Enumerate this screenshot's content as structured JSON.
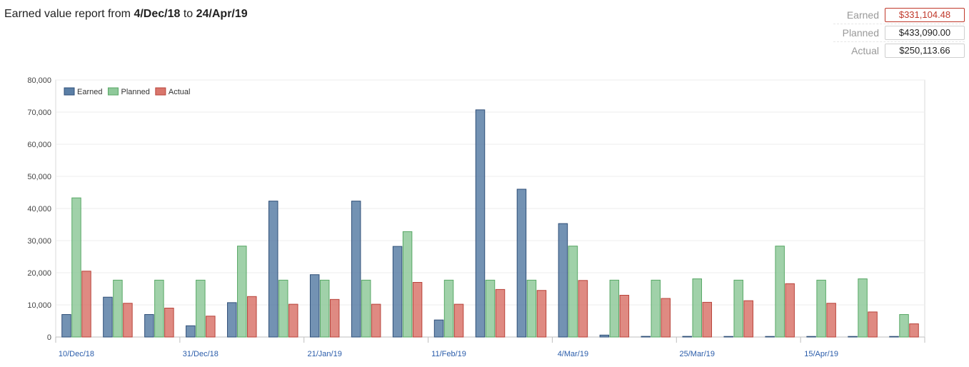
{
  "header": {
    "prefix": "Earned value report from",
    "start_date": "4/Dec/18",
    "connector": "to",
    "end_date": "24/Apr/19"
  },
  "summary": {
    "earned_label": "Earned",
    "earned_value": "$331,104.48",
    "planned_label": "Planned",
    "planned_value": "$433,090.00",
    "actual_label": "Actual",
    "actual_value": "$250,113.66"
  },
  "colors": {
    "earned": "#5b7fa6",
    "earned_border": "#2f4f78",
    "planned": "#8fc99a",
    "planned_border": "#58a866",
    "actual": "#d9766c",
    "actual_border": "#b8433a",
    "x_tick_label": "#2a5caa"
  },
  "chart_data": {
    "type": "bar",
    "title": "",
    "xlabel": "",
    "ylabel": "",
    "ylim": [
      0,
      80000
    ],
    "y_ticks": [
      "0",
      "10,000",
      "20,000",
      "30,000",
      "40,000",
      "50,000",
      "60,000",
      "70,000",
      "80,000"
    ],
    "grid": true,
    "legend": "top-left",
    "x_tick_labels": [
      "10/Dec/18",
      "31/Dec/18",
      "21/Jan/19",
      "11/Feb/19",
      "4/Mar/19",
      "25/Mar/19",
      "15/Apr/19"
    ],
    "x_tick_label_positions": [
      0.5,
      3.5,
      6.5,
      9.5,
      12.5,
      15.5,
      18.5
    ],
    "num_groups": 21,
    "series": [
      {
        "name": "Earned",
        "values": [
          7000,
          12400,
          7000,
          3500,
          10700,
          42300,
          19400,
          42300,
          28200,
          5300,
          70700,
          46000,
          35300,
          600,
          200,
          200,
          100,
          100,
          100,
          100,
          100
        ]
      },
      {
        "name": "Planned",
        "values": [
          43300,
          17700,
          17700,
          17700,
          28300,
          17700,
          17700,
          17700,
          32800,
          17700,
          17700,
          17700,
          28300,
          17700,
          17700,
          18100,
          17700,
          28300,
          17700,
          18100,
          7000
        ]
      },
      {
        "name": "Actual",
        "values": [
          20500,
          10500,
          9000,
          6500,
          12600,
          10200,
          11700,
          10200,
          17000,
          10200,
          14800,
          14500,
          17600,
          13000,
          12000,
          10800,
          11300,
          16600,
          10500,
          7800,
          4100
        ]
      }
    ]
  }
}
